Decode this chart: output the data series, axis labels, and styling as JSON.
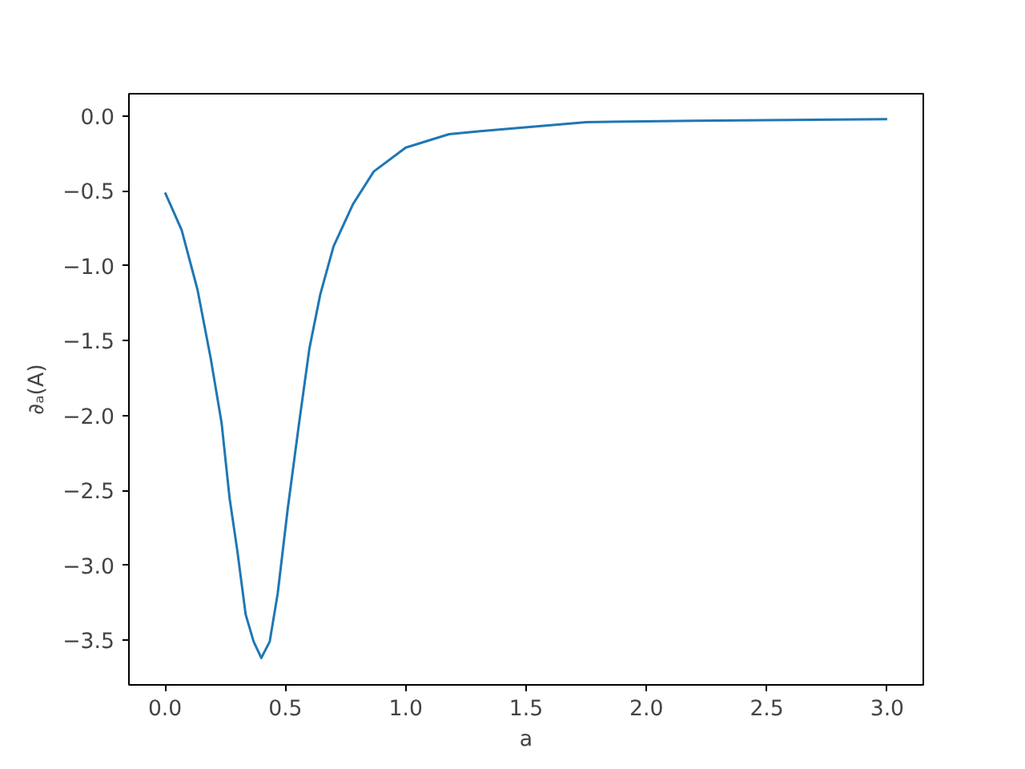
{
  "chart_data": {
    "type": "line",
    "xlabel": "a",
    "ylabel": "∂ₐ(A)",
    "x": [
      0,
      0.069,
      0.135,
      0.19,
      0.235,
      0.268,
      0.3,
      0.335,
      0.368,
      0.4,
      0.435,
      0.468,
      0.51,
      0.557,
      0.6,
      0.645,
      0.7,
      0.78,
      0.867,
      1.0,
      1.18,
      1.31,
      1.75,
      2.2,
      3.0
    ],
    "series": [
      {
        "color": "#1f77b4",
        "values": [
          -0.51,
          -0.76,
          -1.16,
          -1.62,
          -2.05,
          -2.55,
          -2.9,
          -3.33,
          -3.51,
          -3.62,
          -3.51,
          -3.19,
          -2.62,
          -2.05,
          -1.55,
          -1.19,
          -0.87,
          -0.59,
          -0.37,
          -0.21,
          -0.12,
          -0.1,
          -0.04,
          -0.03,
          -0.02
        ]
      }
    ],
    "xlim": [
      -0.15,
      3.15
    ],
    "ylim": [
      -3.8,
      0.15
    ],
    "xticks": [
      {
        "value": 0,
        "label": "0.0"
      },
      {
        "value": 0.5,
        "label": "0.5"
      },
      {
        "value": 1,
        "label": "1.0"
      },
      {
        "value": 1.5,
        "label": "1.5"
      },
      {
        "value": 2,
        "label": "2.0"
      },
      {
        "value": 2.5,
        "label": "2.5"
      },
      {
        "value": 3,
        "label": "3.0"
      }
    ],
    "yticks": [
      {
        "value": 0,
        "label": "0.0"
      },
      {
        "value": -0.5,
        "label": "−0.5"
      },
      {
        "value": -1,
        "label": "−1.0"
      },
      {
        "value": -1.5,
        "label": "−1.5"
      },
      {
        "value": -2,
        "label": "−2.0"
      },
      {
        "value": -2.5,
        "label": "−2.5"
      },
      {
        "value": -3,
        "label": "−3.0"
      },
      {
        "value": -3.5,
        "label": "−3.5"
      }
    ],
    "grid": false,
    "marker": "none",
    "line_style": "solid"
  }
}
